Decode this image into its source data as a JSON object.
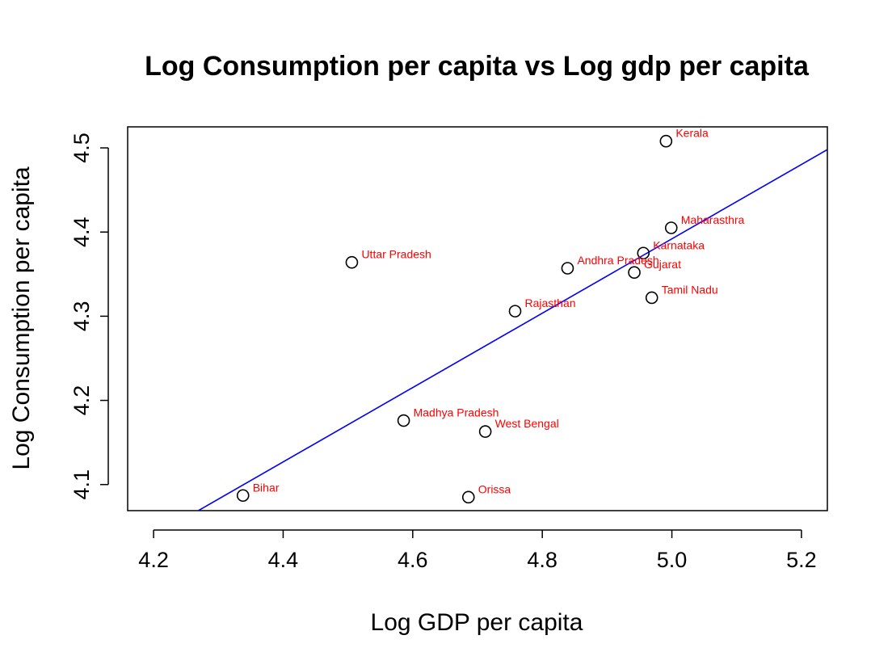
{
  "chart_data": {
    "type": "scatter",
    "title": "Log Consumption per capita vs Log gdp per capita",
    "xlabel": "Log GDP per capita",
    "ylabel": "Log Consumption per capita",
    "xlim": [
      4.16,
      5.24
    ],
    "ylim": [
      4.069,
      4.525
    ],
    "x_ticks": [
      "4.2",
      "4.4",
      "4.6",
      "4.8",
      "5.0",
      "5.2"
    ],
    "y_ticks": [
      "4.1",
      "4.2",
      "4.3",
      "4.4",
      "4.5"
    ],
    "point_color": "#000000",
    "label_color": "#ff0000",
    "line_color": "#0000ff",
    "points": [
      {
        "label": "Bihar",
        "x": 4.338,
        "y": 4.087
      },
      {
        "label": "Orissa",
        "x": 4.686,
        "y": 4.085
      },
      {
        "label": "West Bengal",
        "x": 4.712,
        "y": 4.163
      },
      {
        "label": "Madhya Pradesh",
        "x": 4.586,
        "y": 4.176
      },
      {
        "label": "Uttar Pradesh",
        "x": 4.506,
        "y": 4.364
      },
      {
        "label": "Rajasthan",
        "x": 4.758,
        "y": 4.306
      },
      {
        "label": "Andhra Pradesh",
        "x": 4.839,
        "y": 4.357
      },
      {
        "label": "Gujarat",
        "x": 4.942,
        "y": 4.352
      },
      {
        "label": "Karnataka",
        "x": 4.956,
        "y": 4.375
      },
      {
        "label": "Tamil Nadu",
        "x": 4.969,
        "y": 4.322
      },
      {
        "label": "Maharasthra",
        "x": 4.999,
        "y": 4.405
      },
      {
        "label": "Kerala",
        "x": 4.991,
        "y": 4.508
      }
    ],
    "regression_line": {
      "x1": 4.269,
      "y1": 4.069,
      "x2": 5.24,
      "y2": 4.498
    }
  }
}
